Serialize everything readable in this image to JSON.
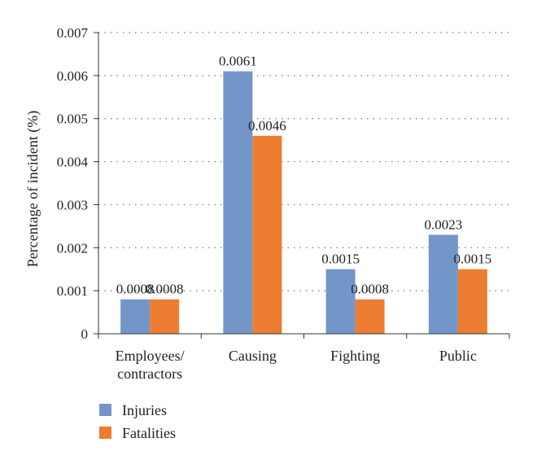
{
  "chart_data": {
    "type": "bar",
    "categories": [
      [
        "Employees/",
        "contractors"
      ],
      [
        "Causing"
      ],
      [
        "Fighting"
      ],
      [
        "Public"
      ]
    ],
    "series": [
      {
        "name": "Injuries",
        "color": "#7396c9",
        "values": [
          0.0008,
          0.0061,
          0.0015,
          0.0023
        ],
        "labels": [
          "0.0008",
          "0.0061",
          "0.0015",
          "0.0023"
        ]
      },
      {
        "name": "Fatalities",
        "color": "#ed7d31",
        "values": [
          0.0008,
          0.0046,
          0.0008,
          0.0015
        ],
        "labels": [
          "0.0008",
          "0.0046",
          "0.0008",
          "0.0015"
        ]
      }
    ],
    "ylabel": "Percentage of incident (%)",
    "ylim": [
      0,
      0.007
    ],
    "yticks": [
      0,
      0.001,
      0.002,
      0.003,
      0.004,
      0.005,
      0.006,
      0.007
    ],
    "ytick_labels": [
      "0",
      "0.001",
      "0.002",
      "0.003",
      "0.004",
      "0.005",
      "0.006",
      "0.007"
    ],
    "grid": "dotted horizontal",
    "legend": "bottom-left"
  }
}
